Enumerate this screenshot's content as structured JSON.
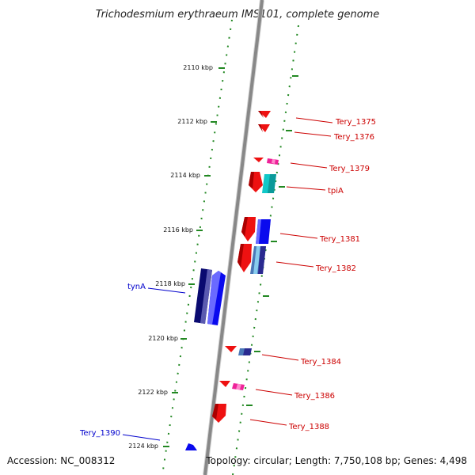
{
  "title": "Trichodesmium erythraeum IMS101, complete genome",
  "accession": "Accession: NC_008312",
  "topology": "Topology: circular; Length: 7,750,108 bp; Genes: 4,498",
  "ticks": [
    "2110 kbp",
    "2112 kbp",
    "2114 kbp",
    "2116 kbp",
    "2118 kbp",
    "2120 kbp",
    "2122 kbp",
    "2124 kbp"
  ],
  "colors": {
    "backbone": "#888888",
    "guide": "#228822",
    "forward_label": "#cc0000",
    "reverse_label": "#0000cc",
    "red_gene": "#ee1111",
    "blue_gene": "#0a0aee",
    "navy_gene": "#0a0a70",
    "cyan_gene": "#11c8c8",
    "steel_gene": "#4a78b8",
    "pink_gene": "#ee2299"
  },
  "genes": [
    {
      "name": "Tery_1375",
      "color": "red",
      "strand": "+"
    },
    {
      "name": "Tery_1376",
      "color": "red",
      "strand": "+"
    },
    {
      "name": "Tery_1379",
      "color": "red",
      "strand": "+"
    },
    {
      "name": "tpiA",
      "color": "red",
      "strand": "+"
    },
    {
      "name": "Tery_1381",
      "color": "red",
      "strand": "+"
    },
    {
      "name": "Tery_1382",
      "color": "red",
      "strand": "+"
    },
    {
      "name": "tynA",
      "color": "blue",
      "strand": "-"
    },
    {
      "name": "Tery_1384",
      "color": "red",
      "strand": "+"
    },
    {
      "name": "Tery_1386",
      "color": "red",
      "strand": "+"
    },
    {
      "name": "Tery_1388",
      "color": "red",
      "strand": "+"
    },
    {
      "name": "Tery_1390",
      "color": "blue",
      "strand": "-"
    }
  ]
}
